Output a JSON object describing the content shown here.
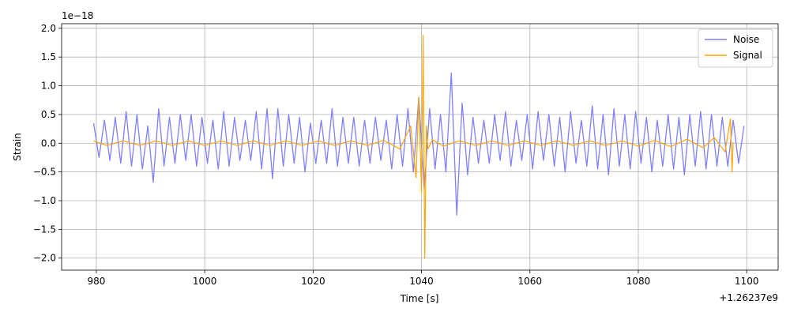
{
  "chart_data": {
    "type": "line",
    "xlabel": "Time [s]",
    "ylabel": "Strain",
    "x_offset_text": "+1.26237e9",
    "y_offset_text": "1e−18",
    "xlim": [
      973.6,
      1105.8
    ],
    "ylim": [
      -2.21,
      2.08
    ],
    "xticks": [
      980,
      1000,
      1020,
      1040,
      1060,
      1080,
      1100
    ],
    "yticks": [
      {
        "value": -2.0,
        "label": "−2.0"
      },
      {
        "value": -1.5,
        "label": "−1.5"
      },
      {
        "value": -1.0,
        "label": "−1.0"
      },
      {
        "value": -0.5,
        "label": "−0.5"
      },
      {
        "value": 0.0,
        "label": "0.0"
      },
      {
        "value": 0.5,
        "label": "0.5"
      },
      {
        "value": 1.0,
        "label": "1.0"
      },
      {
        "value": 1.5,
        "label": "1.5"
      },
      {
        "value": 2.0,
        "label": "2.0"
      }
    ],
    "grid": true,
    "legend": "upper right",
    "series": [
      {
        "name": "Noise",
        "color": "#7f7fff",
        "x": [
          979.5,
          980.5,
          981.5,
          982.5,
          983.5,
          984.5,
          985.5,
          986.5,
          987.5,
          988.5,
          989.5,
          990.5,
          991.5,
          992.5,
          993.5,
          994.5,
          995.5,
          996.5,
          997.5,
          998.5,
          999.5,
          1000.5,
          1001.5,
          1002.5,
          1003.5,
          1004.5,
          1005.5,
          1006.5,
          1007.5,
          1008.5,
          1009.5,
          1010.5,
          1011.5,
          1012.5,
          1013.5,
          1014.5,
          1015.5,
          1016.5,
          1017.5,
          1018.5,
          1019.5,
          1020.5,
          1021.5,
          1022.5,
          1023.5,
          1024.5,
          1025.5,
          1026.5,
          1027.5,
          1028.5,
          1029.5,
          1030.5,
          1031.5,
          1032.5,
          1033.5,
          1034.5,
          1035.5,
          1036.5,
          1037.5,
          1038.5,
          1039.5,
          1040.5,
          1041.5,
          1042.5,
          1043.5,
          1044.5,
          1045.5,
          1046.5,
          1047.5,
          1048.5,
          1049.5,
          1050.5,
          1051.5,
          1052.5,
          1053.5,
          1054.5,
          1055.5,
          1056.5,
          1057.5,
          1058.5,
          1059.5,
          1060.5,
          1061.5,
          1062.5,
          1063.5,
          1064.5,
          1065.5,
          1066.5,
          1067.5,
          1068.5,
          1069.5,
          1070.5,
          1071.5,
          1072.5,
          1073.5,
          1074.5,
          1075.5,
          1076.5,
          1077.5,
          1078.5,
          1079.5,
          1080.5,
          1081.5,
          1082.5,
          1083.5,
          1084.5,
          1085.5,
          1086.5,
          1087.5,
          1088.5,
          1089.5,
          1090.5,
          1091.5,
          1092.5,
          1093.5,
          1094.5,
          1095.5,
          1096.5,
          1097.5,
          1098.5,
          1099.5
        ],
        "values": [
          0.35,
          -0.25,
          0.4,
          -0.3,
          0.45,
          -0.35,
          0.55,
          -0.4,
          0.5,
          -0.45,
          0.3,
          -0.68,
          0.6,
          -0.4,
          0.45,
          -0.35,
          0.5,
          -0.3,
          0.5,
          -0.4,
          0.45,
          -0.35,
          0.4,
          -0.45,
          0.55,
          -0.4,
          0.45,
          -0.3,
          0.4,
          -0.3,
          0.55,
          -0.45,
          0.6,
          -0.62,
          0.6,
          -0.4,
          0.5,
          -0.35,
          0.45,
          -0.5,
          0.35,
          -0.35,
          0.4,
          -0.35,
          0.6,
          -0.4,
          0.45,
          -0.35,
          0.45,
          -0.4,
          0.4,
          -0.35,
          0.45,
          -0.3,
          0.4,
          -0.45,
          0.5,
          -0.4,
          0.6,
          -0.5,
          0.8,
          -0.8,
          0.6,
          -0.45,
          0.5,
          -0.5,
          1.22,
          -1.25,
          0.7,
          -0.55,
          0.45,
          -0.35,
          0.4,
          -0.35,
          0.5,
          -0.3,
          0.55,
          -0.4,
          0.4,
          -0.3,
          0.5,
          -0.45,
          0.55,
          -0.3,
          0.5,
          -0.4,
          0.45,
          -0.5,
          0.55,
          -0.35,
          0.4,
          -0.4,
          0.65,
          -0.45,
          0.5,
          -0.55,
          0.6,
          -0.4,
          0.5,
          -0.45,
          0.55,
          -0.35,
          0.45,
          -0.5,
          0.4,
          -0.4,
          0.5,
          -0.45,
          0.45,
          -0.55,
          0.5,
          -0.4,
          0.55,
          -0.45,
          0.5,
          -0.4,
          0.45,
          -0.4,
          0.4,
          -0.35,
          0.3
        ]
      },
      {
        "name": "Signal",
        "color": "#ffa500",
        "x": [
          979.5,
          982,
          985,
          988,
          991,
          994,
          997,
          1000,
          1003,
          1006,
          1009,
          1012,
          1015,
          1018,
          1021,
          1024,
          1027,
          1030,
          1033,
          1036,
          1038,
          1039,
          1039.5,
          1040,
          1040.3,
          1040.6,
          1040.9,
          1041.2,
          1042,
          1044,
          1047,
          1050,
          1053,
          1056,
          1059,
          1062,
          1065,
          1068,
          1071,
          1074,
          1077,
          1080,
          1083,
          1086,
          1089,
          1092,
          1094,
          1096,
          1097,
          1097.3,
          1097.5
        ],
        "values": [
          0.04,
          -0.04,
          0.04,
          -0.04,
          0.04,
          -0.04,
          0.04,
          -0.04,
          0.04,
          -0.04,
          0.04,
          -0.04,
          0.04,
          -0.04,
          0.04,
          -0.04,
          0.04,
          -0.04,
          0.05,
          -0.1,
          0.3,
          -0.6,
          0.8,
          -0.85,
          1.88,
          -2.0,
          0.3,
          -0.1,
          0.06,
          -0.05,
          0.04,
          -0.04,
          0.04,
          -0.04,
          0.04,
          -0.04,
          0.04,
          -0.04,
          0.04,
          -0.04,
          0.04,
          -0.05,
          0.05,
          -0.06,
          0.07,
          -0.08,
          0.1,
          -0.15,
          0.42,
          -0.5,
          0.02
        ]
      }
    ]
  }
}
